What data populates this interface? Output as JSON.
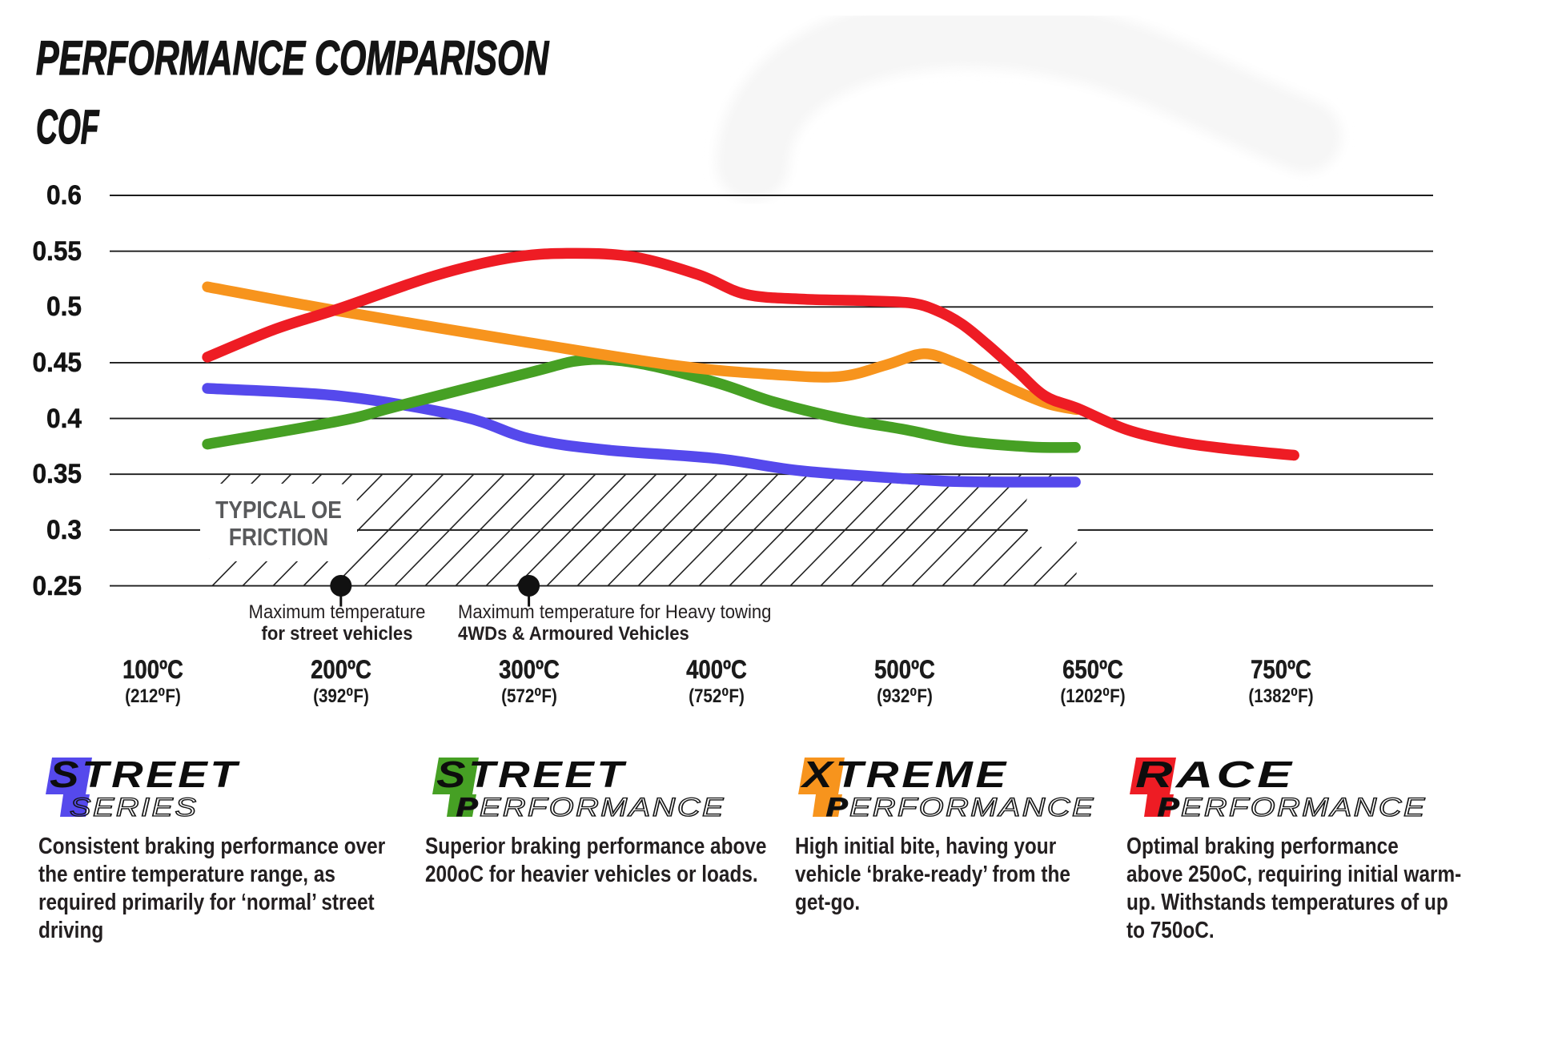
{
  "title": "PERFORMANCE COMPARISON",
  "y_axis_label": "COF",
  "oe_zone_label_line1": "TYPICAL OE",
  "oe_zone_label_line2": "FRICTION",
  "annotations": [
    {
      "temp_c": 200,
      "line1": "Maximum temperature",
      "line2": "for street vehicles"
    },
    {
      "temp_c": 300,
      "line1": "Maximum temperature for Heavy towing",
      "line2": "4WDs & Armoured Vehicles"
    }
  ],
  "chart_data": {
    "type": "line",
    "xlabel": "",
    "ylabel": "COF",
    "ylim": [
      0.25,
      0.6
    ],
    "grid": "horizontal",
    "y_ticks": [
      "0.6",
      "0.55",
      "0.5",
      "0.45",
      "0.4",
      "0.35",
      "0.3",
      "0.25"
    ],
    "y_tick_values": [
      0.6,
      0.55,
      0.5,
      0.45,
      0.4,
      0.35,
      0.3,
      0.25
    ],
    "x_ticks": [
      {
        "c": "100ºC",
        "f": "(212⁰F)",
        "t": 100
      },
      {
        "c": "200ºC",
        "f": "(392⁰F)",
        "t": 200
      },
      {
        "c": "300ºC",
        "f": "(572⁰F)",
        "t": 300
      },
      {
        "c": "400ºC",
        "f": "(752⁰F)",
        "t": 400
      },
      {
        "c": "500ºC",
        "f": "(932⁰F)",
        "t": 500
      },
      {
        "c": "650ºC",
        "f": "(1202⁰F)",
        "t": 650
      },
      {
        "c": "750ºC",
        "f": "(1382⁰F)",
        "t": 750
      }
    ],
    "oe_friction_zone": {
      "cof_min": 0.25,
      "cof_max": 0.35,
      "temp_start": 130,
      "temp_end": 637
    },
    "series": [
      {
        "name": "Street Series",
        "color": "#5549ec",
        "points": [
          [
            129,
            0.427
          ],
          [
            200,
            0.42
          ],
          [
            264,
            0.402
          ],
          [
            300,
            0.382
          ],
          [
            340,
            0.372
          ],
          [
            400,
            0.364
          ],
          [
            445,
            0.353
          ],
          [
            500,
            0.346
          ],
          [
            540,
            0.3435
          ],
          [
            590,
            0.343
          ],
          [
            636,
            0.343
          ]
        ]
      },
      {
        "name": "Street Performance",
        "color": "#46a024",
        "points": [
          [
            129,
            0.377
          ],
          [
            200,
            0.398
          ],
          [
            230,
            0.411
          ],
          [
            300,
            0.441
          ],
          [
            330,
            0.4525
          ],
          [
            360,
            0.449
          ],
          [
            400,
            0.432
          ],
          [
            430,
            0.415
          ],
          [
            466,
            0.4
          ],
          [
            500,
            0.39
          ],
          [
            545,
            0.38
          ],
          [
            600,
            0.3745
          ],
          [
            636,
            0.374
          ]
        ]
      },
      {
        "name": "Xtreme Performance",
        "color": "#f7941d",
        "points": [
          [
            129,
            0.518
          ],
          [
            200,
            0.496
          ],
          [
            300,
            0.468
          ],
          [
            380,
            0.447
          ],
          [
            430,
            0.4395
          ],
          [
            465,
            0.4375
          ],
          [
            490,
            0.448
          ],
          [
            515,
            0.458
          ],
          [
            540,
            0.45
          ],
          [
            565,
            0.437
          ],
          [
            590,
            0.424
          ],
          [
            615,
            0.413
          ],
          [
            637,
            0.408
          ]
        ]
      },
      {
        "name": "Race Performance",
        "color": "#ee1c24",
        "points": [
          [
            129,
            0.455
          ],
          [
            165,
            0.48
          ],
          [
            200,
            0.499
          ],
          [
            250,
            0.528
          ],
          [
            290,
            0.544
          ],
          [
            320,
            0.548
          ],
          [
            355,
            0.545
          ],
          [
            390,
            0.529
          ],
          [
            415,
            0.5115
          ],
          [
            445,
            0.507
          ],
          [
            480,
            0.5055
          ],
          [
            505,
            0.5035
          ],
          [
            525,
            0.497
          ],
          [
            545,
            0.485
          ],
          [
            565,
            0.467
          ],
          [
            590,
            0.442
          ],
          [
            612,
            0.42
          ],
          [
            638,
            0.409
          ],
          [
            668,
            0.39
          ],
          [
            695,
            0.379
          ],
          [
            721,
            0.373
          ],
          [
            757,
            0.367
          ]
        ]
      }
    ]
  },
  "legends": [
    {
      "name": "STREET",
      "sub_initial": "S",
      "sub_rest": "ERIES",
      "color": "#5549ec",
      "description": "Consistent braking performance over\nthe entire temperature range, as\nrequired primarily for ‘normal’ street\ndriving"
    },
    {
      "name": "STREET",
      "sub_initial": "P",
      "sub_rest": "ERFORMANCE",
      "color": "#46a024",
      "description": "Superior braking performance above\n200oC for heavier vehicles or loads."
    },
    {
      "name": "XTREME",
      "sub_initial": "P",
      "sub_rest": "ERFORMANCE",
      "color": "#f7941d",
      "description": "High initial bite, having your\nvehicle ‘brake-ready’ from the\nget-go."
    },
    {
      "name": "RACE",
      "sub_initial": "P",
      "sub_rest": "ERFORMANCE",
      "color": "#ee1c24",
      "description": "Optimal braking performance\nabove 250oC, requiring initial warm-\nup. Withstands temperatures of up\nto 750oC."
    }
  ]
}
